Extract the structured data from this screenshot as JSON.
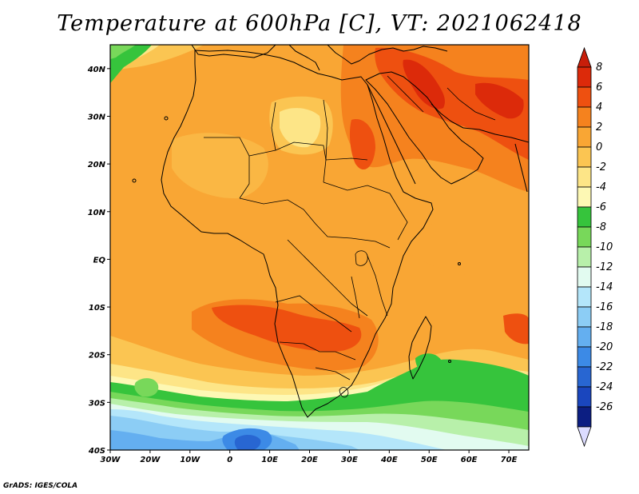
{
  "title": "Temperature at 600hPa [C], VT: 2021062418",
  "credit": "GrADS: IGES/COLA",
  "map": {
    "variable": "Temperature",
    "level": "600hPa",
    "units": "C",
    "valid_time": "2021062418",
    "region": "Africa",
    "lon_range": [
      -30,
      75
    ],
    "lat_range": [
      -40,
      45
    ],
    "lon_ticks": [
      {
        "lon": -30,
        "label": "30W"
      },
      {
        "lon": -20,
        "label": "20W"
      },
      {
        "lon": -10,
        "label": "10W"
      },
      {
        "lon": 0,
        "label": "0"
      },
      {
        "lon": 10,
        "label": "10E"
      },
      {
        "lon": 20,
        "label": "20E"
      },
      {
        "lon": 30,
        "label": "30E"
      },
      {
        "lon": 40,
        "label": "40E"
      },
      {
        "lon": 50,
        "label": "50E"
      },
      {
        "lon": 60,
        "label": "60E"
      },
      {
        "lon": 70,
        "label": "70E"
      }
    ],
    "lat_ticks": [
      {
        "lat": 40,
        "label": "40N"
      },
      {
        "lat": 30,
        "label": "30N"
      },
      {
        "lat": 20,
        "label": "20N"
      },
      {
        "lat": 10,
        "label": "10N"
      },
      {
        "lat": 0,
        "label": "EQ"
      },
      {
        "lat": -10,
        "label": "10S"
      },
      {
        "lat": -20,
        "label": "20S"
      },
      {
        "lat": -30,
        "label": "30S"
      },
      {
        "lat": -40,
        "label": "40S"
      }
    ]
  },
  "colorbar": {
    "levels": [
      {
        "value": 8,
        "label": "8",
        "color": "#dc2a0a"
      },
      {
        "value": 6,
        "label": "6",
        "color": "#ee5010"
      },
      {
        "value": 4,
        "label": "4",
        "color": "#f5821e"
      },
      {
        "value": 2,
        "label": "2",
        "color": "#f9a634"
      },
      {
        "value": 0,
        "label": "0",
        "color": "#fbc552"
      },
      {
        "value": -2,
        "label": "-2",
        "color": "#fde587"
      },
      {
        "value": -4,
        "label": "-4",
        "color": "#fdf8b4"
      },
      {
        "value": -6,
        "label": "-6",
        "color": "#36c43c"
      },
      {
        "value": -8,
        "label": "-8",
        "color": "#78d85a"
      },
      {
        "value": -10,
        "label": "-10",
        "color": "#b8f0aa"
      },
      {
        "value": -12,
        "label": "-12",
        "color": "#e2fbf0"
      },
      {
        "value": -14,
        "label": "-14",
        "color": "#b4e6fa"
      },
      {
        "value": -16,
        "label": "-16",
        "color": "#8ccdf5"
      },
      {
        "value": -18,
        "label": "-18",
        "color": "#64aff0"
      },
      {
        "value": -20,
        "label": "-20",
        "color": "#3c8ae6"
      },
      {
        "value": -22,
        "label": "-22",
        "color": "#2866d2"
      },
      {
        "value": -24,
        "label": "-24",
        "color": "#1a46be"
      },
      {
        "value": -26,
        "label": "-26",
        "color": "#0c1e82"
      }
    ],
    "over_color": "#c81e0a",
    "under_color": "#dcdcff"
  }
}
